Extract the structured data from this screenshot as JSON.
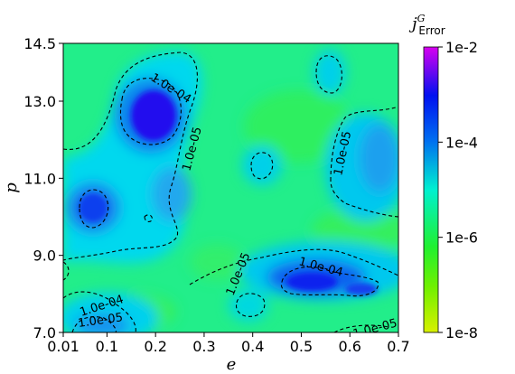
{
  "chart_data": {
    "type": "heatmap",
    "xlabel": "e",
    "ylabel": "p",
    "xlim": [
      0.01,
      0.7
    ],
    "ylim": [
      7.0,
      14.5
    ],
    "x_ticks": [
      "0.01",
      "0.1",
      "0.2",
      "0.3",
      "0.4",
      "0.5",
      "0.6",
      "0.7"
    ],
    "y_ticks": [
      "7.0",
      "9.0",
      "11.0",
      "13.0",
      "14.5"
    ],
    "colorbar": {
      "title": "j^G_Error",
      "title_main": "j",
      "title_sup": "G",
      "title_sub": "Error",
      "scale": "log",
      "range": [
        1e-08,
        0.01
      ],
      "ticks": [
        "1e-8",
        "1e-6",
        "1e-4",
        "1e-2"
      ],
      "colormap": [
        "#d8f000",
        "#30f000",
        "#00f0d8",
        "#0060f0",
        "#0000f0",
        "#a000f0",
        "#d800f0"
      ]
    },
    "background_level": 1e-06,
    "regions": [
      {
        "e": 0.185,
        "p": 12.75,
        "peak": 0.0003
      },
      {
        "e": 0.095,
        "p": 10.25,
        "peak": 0.00012
      },
      {
        "e": 0.52,
        "p": 8.5,
        "peak": 0.0002
      },
      {
        "e": 0.635,
        "p": 8.2,
        "peak": 8e-05
      },
      {
        "e": 0.6,
        "p": 11.7,
        "peak": 5e-05
      },
      {
        "e": 0.4,
        "p": 11.4,
        "peak": 3e-05
      },
      {
        "e": 0.53,
        "p": 13.7,
        "peak": 3e-05
      },
      {
        "e": 0.22,
        "p": 11.0,
        "peak": 4e-05
      },
      {
        "e": 0.1,
        "p": 7.2,
        "peak": 4e-05
      }
    ],
    "contour_labels": [
      "1.0e-04",
      "1.0e-05",
      "1.0e-05",
      "1.0e-05",
      "1.0e-04",
      "1.0e-04",
      "1.0e-05",
      "1.0e-05"
    ],
    "grid": false
  }
}
